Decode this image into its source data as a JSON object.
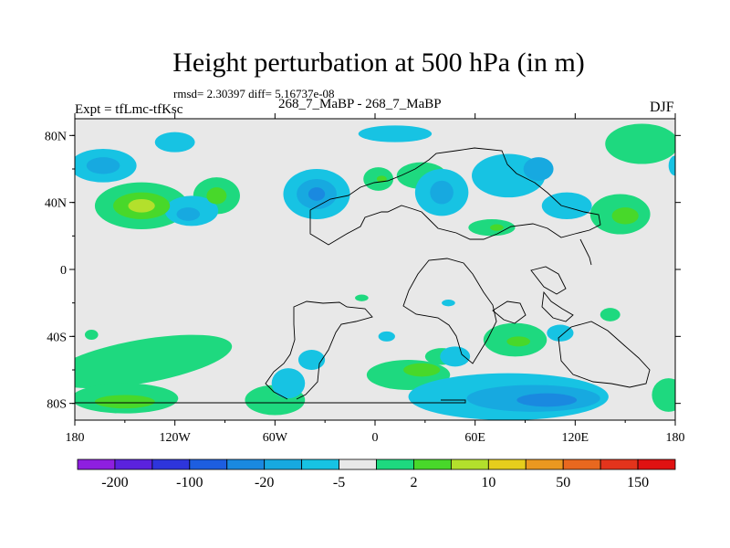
{
  "chart_data": {
    "type": "contour_map",
    "title": "Height perturbation at 500 hPa (in m)",
    "stats_line": "rmsd= 2.30397 diff= 5.16737e-08",
    "left_label": "Expt = tfLmc-tfKsc",
    "center_label": "268_7_MaBP - 268_7_MaBP",
    "right_label": "DJF",
    "x_range": [
      -180,
      180
    ],
    "y_range": [
      -90,
      90
    ],
    "x_ticks": [
      {
        "value": -180,
        "label": "180"
      },
      {
        "value": -120,
        "label": "120W"
      },
      {
        "value": -60,
        "label": "60W"
      },
      {
        "value": 0,
        "label": "0"
      },
      {
        "value": 60,
        "label": "60E"
      },
      {
        "value": 120,
        "label": "120E"
      },
      {
        "value": 180,
        "label": "180"
      }
    ],
    "y_ticks": [
      {
        "value": 80,
        "label": "80N"
      },
      {
        "value": 40,
        "label": "40N"
      },
      {
        "value": 0,
        "label": "0"
      },
      {
        "value": -40,
        "label": "40S"
      },
      {
        "value": -80,
        "label": "80S"
      }
    ],
    "colorbar": {
      "colors": [
        "#8e1fe0",
        "#5b22de",
        "#2e35dc",
        "#1d5ee0",
        "#1a89e0",
        "#17a9e0",
        "#17c3e3",
        "#e8e8e8",
        "#1ed97f",
        "#48d82a",
        "#b3e02c",
        "#e6ce1c",
        "#ea9820",
        "#e8681f",
        "#e3341c",
        "#e01212"
      ],
      "labels": [
        {
          "after_box": 1,
          "text": "-200"
        },
        {
          "after_box": 3,
          "text": "-100"
        },
        {
          "after_box": 5,
          "text": "-20"
        },
        {
          "after_box": 7,
          "text": "-5"
        },
        {
          "after_box": 9,
          "text": "2"
        },
        {
          "after_box": 11,
          "text": "10"
        },
        {
          "after_box": 13,
          "text": "50"
        },
        {
          "after_box": 15,
          "text": "150"
        }
      ]
    },
    "anomalies": [
      {
        "lon": -140,
        "lat": 38,
        "rx": 28,
        "ry": 14,
        "rot": 0,
        "level": 1
      },
      {
        "lon": -140,
        "lat": 38,
        "rx": 17,
        "ry": 8,
        "rot": 0,
        "level": 2
      },
      {
        "lon": -140,
        "lat": 38,
        "rx": 8,
        "ry": 4,
        "rot": 0,
        "level": 3
      },
      {
        "lon": -95,
        "lat": 44,
        "rx": 14,
        "ry": 11,
        "rot": 0,
        "level": 1
      },
      {
        "lon": -95,
        "lat": 44,
        "rx": 6,
        "ry": 5,
        "rot": 0,
        "level": 2
      },
      {
        "lon": -163,
        "lat": 62,
        "rx": 20,
        "ry": 10,
        "rot": 0,
        "level": -1
      },
      {
        "lon": -163,
        "lat": 62,
        "rx": 10,
        "ry": 5,
        "rot": 0,
        "level": -2
      },
      {
        "lon": -120,
        "lat": 76,
        "rx": 12,
        "ry": 6,
        "rot": 0,
        "level": -1
      },
      {
        "lon": -110,
        "lat": 35,
        "rx": 16,
        "ry": 9,
        "rot": 0,
        "level": -1
      },
      {
        "lon": -112,
        "lat": 33,
        "rx": 7,
        "ry": 4,
        "rot": 0,
        "level": -2
      },
      {
        "lon": -35,
        "lat": 45,
        "rx": 20,
        "ry": 15,
        "rot": 0,
        "level": -1
      },
      {
        "lon": -35,
        "lat": 45,
        "rx": 12,
        "ry": 9,
        "rot": 0,
        "level": -2
      },
      {
        "lon": -35,
        "lat": 45,
        "rx": 5,
        "ry": 4,
        "rot": 0,
        "level": -3
      },
      {
        "lon": 2,
        "lat": 54,
        "rx": 9,
        "ry": 7,
        "rot": 0,
        "level": 1
      },
      {
        "lon": 4,
        "lat": 54,
        "rx": 3,
        "ry": 2,
        "rot": 0,
        "level": 2
      },
      {
        "lon": 12,
        "lat": 81,
        "rx": 22,
        "ry": 5,
        "rot": 0,
        "level": -1
      },
      {
        "lon": 28,
        "lat": 56,
        "rx": 15,
        "ry": 8,
        "rot": 0,
        "level": 1
      },
      {
        "lon": 40,
        "lat": 46,
        "rx": 16,
        "ry": 14,
        "rot": 0,
        "level": -1
      },
      {
        "lon": 40,
        "lat": 46,
        "rx": 7,
        "ry": 7,
        "rot": 0,
        "level": -2
      },
      {
        "lon": 70,
        "lat": 25,
        "rx": 14,
        "ry": 5,
        "rot": 0,
        "level": 1
      },
      {
        "lon": 73,
        "lat": 25,
        "rx": 4,
        "ry": 2,
        "rot": 0,
        "level": 2
      },
      {
        "lon": 80,
        "lat": 56,
        "rx": 22,
        "ry": 13,
        "rot": 0,
        "level": -1
      },
      {
        "lon": 98,
        "lat": 60,
        "rx": 9,
        "ry": 7,
        "rot": 0,
        "level": -2
      },
      {
        "lon": 115,
        "lat": 38,
        "rx": 15,
        "ry": 8,
        "rot": 0,
        "level": -1
      },
      {
        "lon": 160,
        "lat": 75,
        "rx": 22,
        "ry": 12,
        "rot": 0,
        "level": 1
      },
      {
        "lon": 147,
        "lat": 33,
        "rx": 18,
        "ry": 12,
        "rot": 0,
        "level": 1
      },
      {
        "lon": 150,
        "lat": 32,
        "rx": 8,
        "ry": 5,
        "rot": 0,
        "level": 2
      },
      {
        "lon": 180,
        "lat": 62,
        "rx": 4,
        "ry": 6,
        "rot": 0,
        "level": -1
      },
      {
        "lon": -8,
        "lat": -17,
        "rx": 4,
        "ry": 2,
        "rot": 0,
        "level": 1
      },
      {
        "lon": 44,
        "lat": -20,
        "rx": 4,
        "ry": 2,
        "rot": 0,
        "level": -1
      },
      {
        "lon": 141,
        "lat": -27,
        "rx": 6,
        "ry": 4,
        "rot": 0,
        "level": 1
      },
      {
        "lon": -170,
        "lat": -39,
        "rx": 4,
        "ry": 3,
        "rot": 0,
        "level": 1
      },
      {
        "lon": 7,
        "lat": -40,
        "rx": 5,
        "ry": 3,
        "rot": 0,
        "level": -1
      },
      {
        "lon": 84,
        "lat": -42,
        "rx": 19,
        "ry": 10,
        "rot": 0,
        "level": 1
      },
      {
        "lon": 86,
        "lat": -43,
        "rx": 7,
        "ry": 3,
        "rot": 0,
        "level": 2
      },
      {
        "lon": 111,
        "lat": -38,
        "rx": 8,
        "ry": 5,
        "rot": 0,
        "level": -1
      },
      {
        "lon": -140,
        "lat": -55,
        "rx": 55,
        "ry": 13,
        "rot": -10,
        "level": 1
      },
      {
        "lon": -150,
        "lat": -77,
        "rx": 32,
        "ry": 9,
        "rot": 0,
        "level": 1
      },
      {
        "lon": -150,
        "lat": -79,
        "rx": 18,
        "ry": 4,
        "rot": 0,
        "level": 2
      },
      {
        "lon": -60,
        "lat": -78,
        "rx": 18,
        "ry": 9,
        "rot": 0,
        "level": 1
      },
      {
        "lon": -52,
        "lat": -68,
        "rx": 10,
        "ry": 9,
        "rot": 0,
        "level": -1
      },
      {
        "lon": -38,
        "lat": -54,
        "rx": 8,
        "ry": 6,
        "rot": 0,
        "level": -1
      },
      {
        "lon": 20,
        "lat": -63,
        "rx": 25,
        "ry": 9,
        "rot": 0,
        "level": 1
      },
      {
        "lon": 28,
        "lat": -60,
        "rx": 11,
        "ry": 4,
        "rot": 0,
        "level": 2
      },
      {
        "lon": 40,
        "lat": -52,
        "rx": 10,
        "ry": 5,
        "rot": 0,
        "level": 1
      },
      {
        "lon": 48,
        "lat": -52,
        "rx": 9,
        "ry": 6,
        "rot": 0,
        "level": -1
      },
      {
        "lon": 80,
        "lat": -76,
        "rx": 60,
        "ry": 14,
        "rot": 0,
        "level": -1
      },
      {
        "lon": 95,
        "lat": -77,
        "rx": 40,
        "ry": 8,
        "rot": 0,
        "level": -2
      },
      {
        "lon": 103,
        "lat": -78,
        "rx": 18,
        "ry": 4,
        "rot": 0,
        "level": -3
      },
      {
        "lon": 176,
        "lat": -75,
        "rx": 10,
        "ry": 10,
        "rot": 0,
        "level": 1
      }
    ]
  }
}
